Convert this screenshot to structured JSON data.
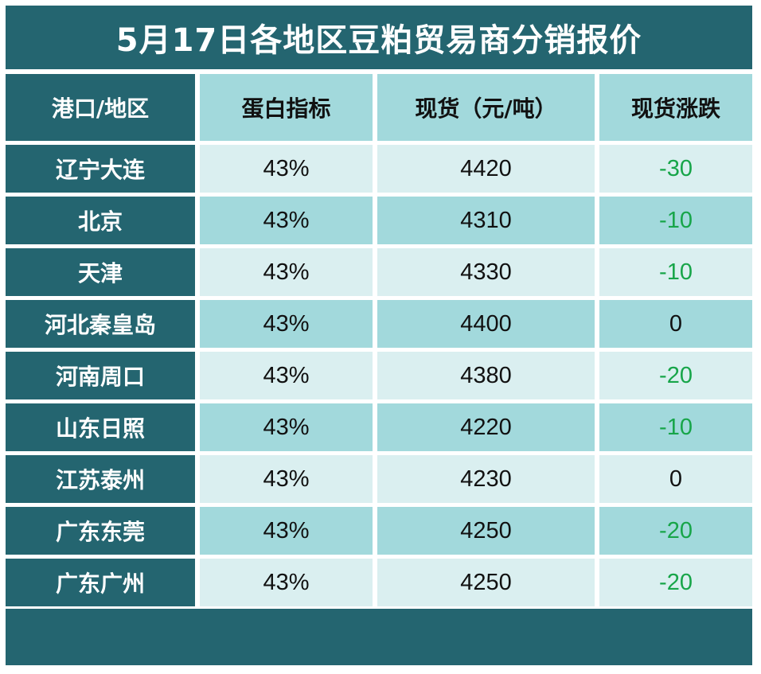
{
  "title": "5月17日各地区豆粕贸易商分销报价",
  "headers": [
    "港口/地区",
    "蛋白指标",
    "现货（元/吨）",
    "现货涨跌"
  ],
  "colors": {
    "dark_teal": "#246570",
    "light_teal": "#a2d9dc",
    "pale_teal": "#daeff0",
    "change_down": "#17a549"
  },
  "rows": [
    {
      "region": "辽宁大连",
      "protein": "43%",
      "price": "4420",
      "change": "-30"
    },
    {
      "region": "北京",
      "protein": "43%",
      "price": "4310",
      "change": "-10"
    },
    {
      "region": "天津",
      "protein": "43%",
      "price": "4330",
      "change": "-10"
    },
    {
      "region": "河北秦皇岛",
      "protein": "43%",
      "price": "4400",
      "change": "0"
    },
    {
      "region": "河南周口",
      "protein": "43%",
      "price": "4380",
      "change": "-20"
    },
    {
      "region": "山东日照",
      "protein": "43%",
      "price": "4220",
      "change": "-10"
    },
    {
      "region": "江苏泰州",
      "protein": "43%",
      "price": "4230",
      "change": "0"
    },
    {
      "region": "广东东莞",
      "protein": "43%",
      "price": "4250",
      "change": "-20"
    },
    {
      "region": "广东广州",
      "protein": "43%",
      "price": "4250",
      "change": "-20"
    }
  ]
}
